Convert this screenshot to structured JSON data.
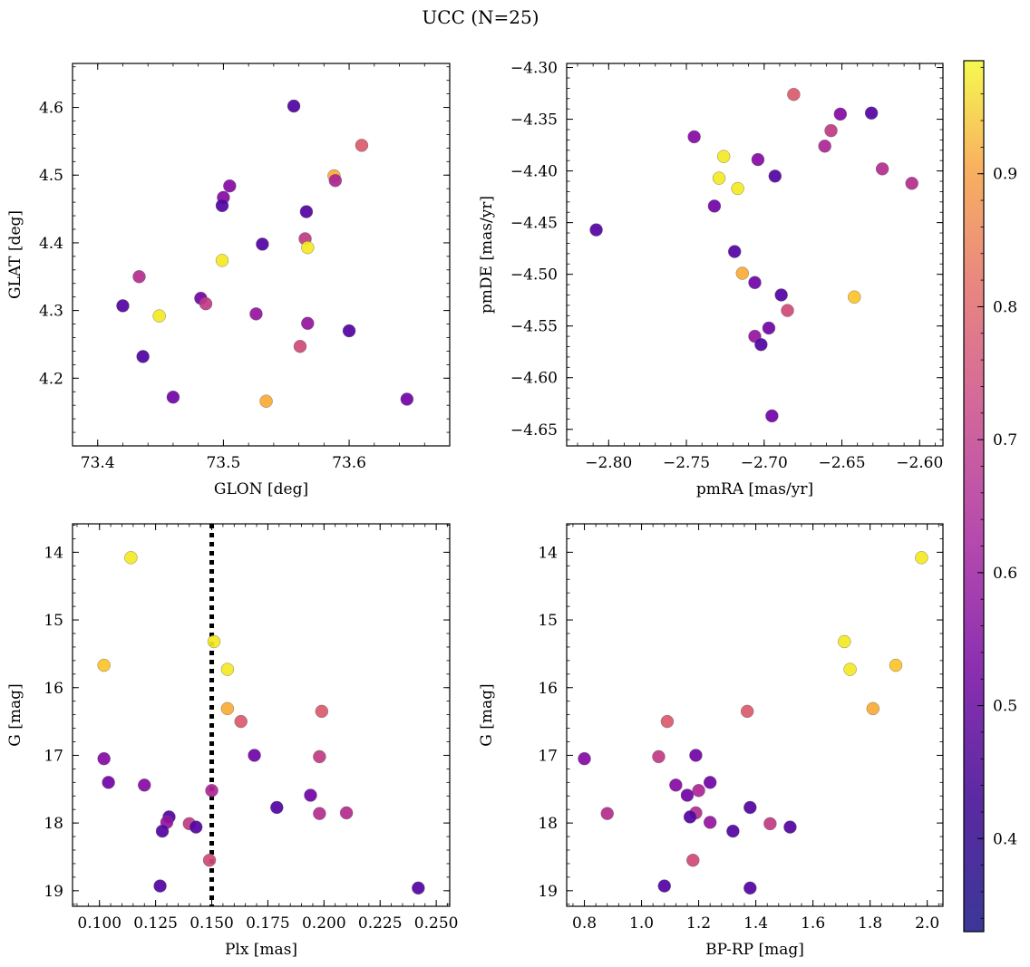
{
  "title": "UCC (N=25)",
  "colormap": {
    "name": "plasma",
    "range": [
      0.33,
      0.985
    ],
    "ticks": [
      "0.4",
      "0.5",
      "0.6",
      "0.7",
      "0.8",
      "0.9"
    ],
    "tick_values": [
      0.4,
      0.5,
      0.6,
      0.7,
      0.8,
      0.9
    ]
  },
  "chart_data": [
    {
      "type": "scatter",
      "xlabel": "GLON [deg]",
      "ylabel": "GLAT [deg]",
      "xlim": [
        73.38,
        73.68
      ],
      "ylim": [
        4.1,
        4.665
      ],
      "xticks": [
        "73.4",
        "73.5",
        "73.6"
      ],
      "xtick_values": [
        73.4,
        73.5,
        73.6
      ],
      "yticks": [
        "4.2",
        "4.3",
        "4.4",
        "4.5",
        "4.6"
      ],
      "ytick_values": [
        4.2,
        4.3,
        4.4,
        4.5,
        4.6
      ],
      "yinvert": false,
      "points": [
        {
          "x": 73.556,
          "y": 4.602,
          "c": 0.37
        },
        {
          "x": 73.61,
          "y": 4.544,
          "c": 0.68
        },
        {
          "x": 73.588,
          "y": 4.499,
          "c": 0.85
        },
        {
          "x": 73.589,
          "y": 4.492,
          "c": 0.55
        },
        {
          "x": 73.505,
          "y": 4.484,
          "c": 0.47
        },
        {
          "x": 73.5,
          "y": 4.467,
          "c": 0.47
        },
        {
          "x": 73.499,
          "y": 4.455,
          "c": 0.38
        },
        {
          "x": 73.566,
          "y": 4.446,
          "c": 0.38
        },
        {
          "x": 73.565,
          "y": 4.406,
          "c": 0.6
        },
        {
          "x": 73.531,
          "y": 4.398,
          "c": 0.38
        },
        {
          "x": 73.567,
          "y": 4.393,
          "c": 0.96
        },
        {
          "x": 73.499,
          "y": 4.374,
          "c": 0.96
        },
        {
          "x": 73.433,
          "y": 4.35,
          "c": 0.57
        },
        {
          "x": 73.482,
          "y": 4.318,
          "c": 0.43
        },
        {
          "x": 73.486,
          "y": 4.31,
          "c": 0.6
        },
        {
          "x": 73.42,
          "y": 4.307,
          "c": 0.38
        },
        {
          "x": 73.526,
          "y": 4.295,
          "c": 0.5
        },
        {
          "x": 73.449,
          "y": 4.292,
          "c": 0.96
        },
        {
          "x": 73.567,
          "y": 4.281,
          "c": 0.5
        },
        {
          "x": 73.6,
          "y": 4.27,
          "c": 0.38
        },
        {
          "x": 73.561,
          "y": 4.247,
          "c": 0.64
        },
        {
          "x": 73.436,
          "y": 4.232,
          "c": 0.37
        },
        {
          "x": 73.46,
          "y": 4.172,
          "c": 0.43
        },
        {
          "x": 73.534,
          "y": 4.166,
          "c": 0.85
        },
        {
          "x": 73.646,
          "y": 4.169,
          "c": 0.43
        }
      ]
    },
    {
      "type": "scatter",
      "xlabel": "pmRA [mas/yr]",
      "ylabel": "pmDE [mas/yr]",
      "xlim": [
        -2.827,
        -2.585
      ],
      "ylim": [
        -4.666,
        -4.296
      ],
      "xticks": [
        "−2.80",
        "−2.75",
        "−2.70",
        "−2.65",
        "−2.60"
      ],
      "xtick_values": [
        -2.8,
        -2.75,
        -2.7,
        -2.65,
        -2.6
      ],
      "yticks": [
        "−4.30",
        "−4.35",
        "−4.40",
        "−4.45",
        "−4.50",
        "−4.55",
        "−4.60",
        "−4.65"
      ],
      "ytick_values": [
        -4.3,
        -4.35,
        -4.4,
        -4.45,
        -4.5,
        -4.55,
        -4.6,
        -4.65
      ],
      "yinvert": false,
      "points": [
        {
          "x": -2.681,
          "y": -4.326,
          "c": 0.68
        },
        {
          "x": -2.631,
          "y": -4.344,
          "c": 0.38
        },
        {
          "x": -2.651,
          "y": -4.345,
          "c": 0.47
        },
        {
          "x": -2.657,
          "y": -4.361,
          "c": 0.6
        },
        {
          "x": -2.745,
          "y": -4.367,
          "c": 0.47
        },
        {
          "x": -2.661,
          "y": -4.376,
          "c": 0.55
        },
        {
          "x": -2.726,
          "y": -4.386,
          "c": 0.96
        },
        {
          "x": -2.704,
          "y": -4.389,
          "c": 0.47
        },
        {
          "x": -2.624,
          "y": -4.398,
          "c": 0.57
        },
        {
          "x": -2.693,
          "y": -4.405,
          "c": 0.38
        },
        {
          "x": -2.729,
          "y": -4.407,
          "c": 0.96
        },
        {
          "x": -2.605,
          "y": -4.412,
          "c": 0.57
        },
        {
          "x": -2.717,
          "y": -4.417,
          "c": 0.96
        },
        {
          "x": -2.732,
          "y": -4.434,
          "c": 0.43
        },
        {
          "x": -2.808,
          "y": -4.457,
          "c": 0.38
        },
        {
          "x": -2.719,
          "y": -4.478,
          "c": 0.38
        },
        {
          "x": -2.714,
          "y": -4.499,
          "c": 0.85
        },
        {
          "x": -2.706,
          "y": -4.508,
          "c": 0.43
        },
        {
          "x": -2.689,
          "y": -4.52,
          "c": 0.38
        },
        {
          "x": -2.642,
          "y": -4.522,
          "c": 0.9
        },
        {
          "x": -2.685,
          "y": -4.535,
          "c": 0.64
        },
        {
          "x": -2.697,
          "y": -4.552,
          "c": 0.43
        },
        {
          "x": -2.706,
          "y": -4.56,
          "c": 0.5
        },
        {
          "x": -2.702,
          "y": -4.568,
          "c": 0.38
        },
        {
          "x": -2.695,
          "y": -4.637,
          "c": 0.43
        }
      ]
    },
    {
      "type": "scatter",
      "xlabel": "Plx [mas]",
      "ylabel": "G [mag]",
      "xlim": [
        0.088,
        0.256
      ],
      "ylim": [
        19.23,
        13.58
      ],
      "xticks": [
        "0.100",
        "0.125",
        "0.150",
        "0.175",
        "0.200",
        "0.225",
        "0.250"
      ],
      "xtick_values": [
        0.1,
        0.125,
        0.15,
        0.175,
        0.2,
        0.225,
        0.25
      ],
      "yticks": [
        "14",
        "15",
        "16",
        "17",
        "18",
        "19"
      ],
      "ytick_values": [
        14,
        15,
        16,
        17,
        18,
        19
      ],
      "yinvert": true,
      "vline": {
        "x": 0.15,
        "style": "dotted"
      },
      "points": [
        {
          "x": 0.114,
          "y": 14.08,
          "c": 0.96
        },
        {
          "x": 0.151,
          "y": 15.32,
          "c": 0.96
        },
        {
          "x": 0.102,
          "y": 15.67,
          "c": 0.9
        },
        {
          "x": 0.157,
          "y": 15.73,
          "c": 0.96
        },
        {
          "x": 0.157,
          "y": 16.31,
          "c": 0.85
        },
        {
          "x": 0.199,
          "y": 16.35,
          "c": 0.68
        },
        {
          "x": 0.163,
          "y": 16.5,
          "c": 0.68
        },
        {
          "x": 0.169,
          "y": 17.0,
          "c": 0.43
        },
        {
          "x": 0.198,
          "y": 17.02,
          "c": 0.6
        },
        {
          "x": 0.102,
          "y": 17.05,
          "c": 0.47
        },
        {
          "x": 0.104,
          "y": 17.4,
          "c": 0.43
        },
        {
          "x": 0.12,
          "y": 17.44,
          "c": 0.47
        },
        {
          "x": 0.15,
          "y": 17.52,
          "c": 0.55
        },
        {
          "x": 0.194,
          "y": 17.59,
          "c": 0.43
        },
        {
          "x": 0.179,
          "y": 17.77,
          "c": 0.38
        },
        {
          "x": 0.198,
          "y": 17.86,
          "c": 0.57
        },
        {
          "x": 0.21,
          "y": 17.85,
          "c": 0.57
        },
        {
          "x": 0.131,
          "y": 17.91,
          "c": 0.38
        },
        {
          "x": 0.13,
          "y": 17.99,
          "c": 0.5
        },
        {
          "x": 0.14,
          "y": 18.01,
          "c": 0.6
        },
        {
          "x": 0.143,
          "y": 18.06,
          "c": 0.38
        },
        {
          "x": 0.128,
          "y": 18.12,
          "c": 0.38
        },
        {
          "x": 0.149,
          "y": 18.55,
          "c": 0.64
        },
        {
          "x": 0.127,
          "y": 18.93,
          "c": 0.38
        },
        {
          "x": 0.242,
          "y": 18.96,
          "c": 0.38
        }
      ]
    },
    {
      "type": "scatter",
      "xlabel": "BP-RP [mag]",
      "ylabel": "G [mag]",
      "xlim": [
        0.738,
        2.055
      ],
      "ylim": [
        19.23,
        13.58
      ],
      "xticks": [
        "0.8",
        "1.0",
        "1.2",
        "1.4",
        "1.6",
        "1.8",
        "2.0"
      ],
      "xtick_values": [
        0.8,
        1.0,
        1.2,
        1.4,
        1.6,
        1.8,
        2.0
      ],
      "yticks": [
        "14",
        "15",
        "16",
        "17",
        "18",
        "19"
      ],
      "ytick_values": [
        14,
        15,
        16,
        17,
        18,
        19
      ],
      "yinvert": true,
      "points": [
        {
          "x": 1.98,
          "y": 14.08,
          "c": 0.96
        },
        {
          "x": 1.71,
          "y": 15.32,
          "c": 0.96
        },
        {
          "x": 1.89,
          "y": 15.67,
          "c": 0.9
        },
        {
          "x": 1.73,
          "y": 15.73,
          "c": 0.96
        },
        {
          "x": 1.81,
          "y": 16.31,
          "c": 0.85
        },
        {
          "x": 1.37,
          "y": 16.35,
          "c": 0.68
        },
        {
          "x": 1.09,
          "y": 16.5,
          "c": 0.68
        },
        {
          "x": 1.19,
          "y": 17.0,
          "c": 0.43
        },
        {
          "x": 1.06,
          "y": 17.02,
          "c": 0.6
        },
        {
          "x": 0.8,
          "y": 17.05,
          "c": 0.47
        },
        {
          "x": 1.24,
          "y": 17.4,
          "c": 0.43
        },
        {
          "x": 1.12,
          "y": 17.44,
          "c": 0.47
        },
        {
          "x": 1.2,
          "y": 17.52,
          "c": 0.55
        },
        {
          "x": 1.16,
          "y": 17.59,
          "c": 0.43
        },
        {
          "x": 1.38,
          "y": 17.77,
          "c": 0.38
        },
        {
          "x": 0.88,
          "y": 17.86,
          "c": 0.57
        },
        {
          "x": 1.19,
          "y": 17.85,
          "c": 0.57
        },
        {
          "x": 1.17,
          "y": 17.91,
          "c": 0.38
        },
        {
          "x": 1.24,
          "y": 17.99,
          "c": 0.5
        },
        {
          "x": 1.45,
          "y": 18.01,
          "c": 0.6
        },
        {
          "x": 1.52,
          "y": 18.06,
          "c": 0.38
        },
        {
          "x": 1.32,
          "y": 18.12,
          "c": 0.38
        },
        {
          "x": 1.18,
          "y": 18.55,
          "c": 0.64
        },
        {
          "x": 1.08,
          "y": 18.93,
          "c": 0.38
        },
        {
          "x": 1.38,
          "y": 18.96,
          "c": 0.38
        }
      ]
    }
  ]
}
